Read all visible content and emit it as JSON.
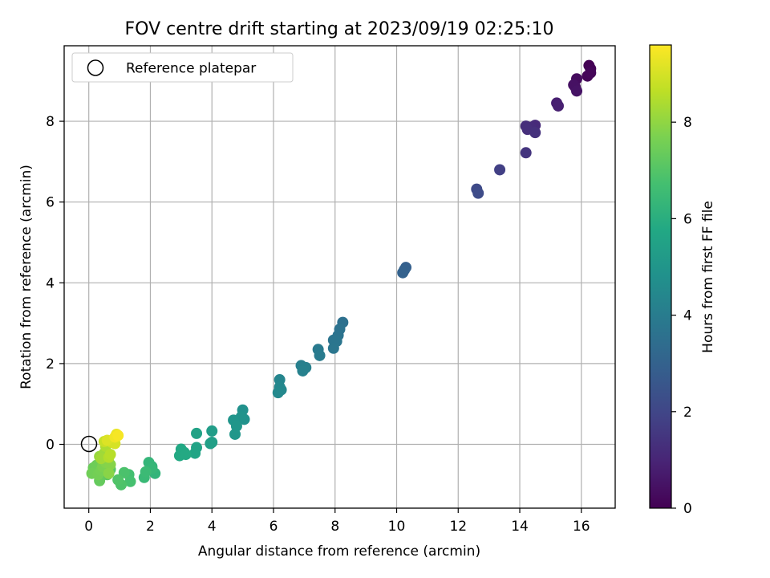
{
  "chart_data": {
    "type": "scatter",
    "title": "FOV centre drift starting at 2023/09/19 02:25:10",
    "xlabel": "Angular distance from reference (arcmin)",
    "ylabel": "Rotation from reference (arcmin)",
    "xlim": [
      -0.8,
      17.1
    ],
    "ylim": [
      -1.58,
      9.87
    ],
    "xticks": [
      0,
      2,
      4,
      6,
      8,
      10,
      12,
      14,
      16
    ],
    "yticks": [
      0,
      2,
      4,
      6,
      8
    ],
    "grid": true,
    "legend": {
      "placement": "upper-left",
      "entries": [
        "Reference platepar"
      ]
    },
    "reference_point": {
      "x": 0,
      "y": 0,
      "label": "Reference platepar"
    },
    "colorbar": {
      "label": "Hours from first FF file",
      "colormap": "viridis",
      "range": [
        0,
        9.6
      ],
      "ticks": [
        0,
        2,
        4,
        6,
        8
      ]
    },
    "points": [
      [
        16.25,
        9.38,
        0.0
      ],
      [
        16.3,
        9.3,
        0.05
      ],
      [
        16.2,
        9.12,
        0.1
      ],
      [
        16.3,
        9.2,
        0.15
      ],
      [
        15.85,
        9.05,
        0.3
      ],
      [
        15.8,
        8.85,
        0.4
      ],
      [
        15.75,
        8.9,
        0.45
      ],
      [
        15.85,
        8.75,
        0.5
      ],
      [
        15.2,
        8.45,
        0.8
      ],
      [
        15.25,
        8.38,
        0.85
      ],
      [
        14.5,
        7.9,
        1.15
      ],
      [
        14.35,
        7.85,
        1.2
      ],
      [
        14.2,
        7.88,
        1.25
      ],
      [
        14.25,
        7.8,
        1.3
      ],
      [
        14.5,
        7.72,
        1.35
      ],
      [
        14.2,
        7.22,
        1.45
      ],
      [
        13.35,
        6.8,
        1.8
      ],
      [
        12.6,
        6.32,
        2.15
      ],
      [
        12.65,
        6.22,
        2.2
      ],
      [
        10.3,
        4.38,
        2.9
      ],
      [
        10.25,
        4.32,
        2.95
      ],
      [
        10.2,
        4.25,
        3.0
      ],
      [
        8.25,
        3.02,
        3.55
      ],
      [
        8.15,
        2.85,
        3.6
      ],
      [
        8.1,
        2.7,
        3.65
      ],
      [
        7.95,
        2.58,
        3.7
      ],
      [
        8.05,
        2.55,
        3.72
      ],
      [
        7.95,
        2.38,
        3.78
      ],
      [
        7.45,
        2.35,
        3.9
      ],
      [
        7.5,
        2.2,
        3.95
      ],
      [
        6.9,
        1.95,
        4.1
      ],
      [
        7.05,
        1.9,
        4.15
      ],
      [
        6.95,
        1.82,
        4.2
      ],
      [
        6.2,
        1.6,
        4.35
      ],
      [
        6.2,
        1.42,
        4.4
      ],
      [
        6.25,
        1.35,
        4.45
      ],
      [
        6.15,
        1.28,
        4.5
      ],
      [
        5.0,
        0.85,
        4.8
      ],
      [
        5.05,
        0.62,
        4.85
      ],
      [
        4.95,
        0.68,
        4.88
      ],
      [
        4.7,
        0.6,
        4.95
      ],
      [
        4.8,
        0.45,
        5.0
      ],
      [
        4.75,
        0.25,
        5.05
      ],
      [
        4.0,
        0.33,
        5.3
      ],
      [
        4.0,
        0.05,
        5.35
      ],
      [
        3.95,
        0.02,
        5.38
      ],
      [
        3.5,
        0.27,
        5.5
      ],
      [
        3.5,
        -0.08,
        5.55
      ],
      [
        3.45,
        -0.22,
        5.6
      ],
      [
        3.1,
        -0.2,
        5.7
      ],
      [
        3.0,
        -0.12,
        5.75
      ],
      [
        2.95,
        -0.28,
        5.8
      ],
      [
        3.15,
        -0.25,
        5.82
      ],
      [
        2.05,
        -0.55,
        6.2
      ],
      [
        2.15,
        -0.72,
        6.25
      ],
      [
        1.95,
        -0.45,
        6.3
      ],
      [
        2.05,
        -0.6,
        6.35
      ],
      [
        1.8,
        -0.82,
        6.45
      ],
      [
        1.85,
        -0.68,
        6.5
      ],
      [
        1.3,
        -0.75,
        6.7
      ],
      [
        1.35,
        -0.92,
        6.75
      ],
      [
        1.15,
        -0.7,
        6.85
      ],
      [
        1.05,
        -1.0,
        6.9
      ],
      [
        0.95,
        -0.88,
        6.95
      ],
      [
        0.7,
        -0.62,
        7.1
      ],
      [
        0.6,
        -0.75,
        7.15
      ],
      [
        0.35,
        -0.9,
        7.3
      ],
      [
        0.15,
        -0.58,
        7.4
      ],
      [
        0.25,
        -0.52,
        7.45
      ],
      [
        0.1,
        -0.72,
        7.5
      ],
      [
        0.3,
        -0.75,
        7.55
      ],
      [
        0.4,
        -0.65,
        7.6
      ],
      [
        0.45,
        -0.55,
        7.7
      ],
      [
        0.55,
        -0.45,
        7.8
      ],
      [
        0.7,
        -0.5,
        7.85
      ],
      [
        0.65,
        -0.72,
        7.9
      ],
      [
        0.35,
        -0.3,
        8.1
      ],
      [
        0.5,
        -0.22,
        8.2
      ],
      [
        0.4,
        -0.35,
        8.25
      ],
      [
        0.55,
        -0.05,
        8.4
      ],
      [
        0.65,
        -0.32,
        8.5
      ],
      [
        0.7,
        -0.25,
        8.55
      ],
      [
        0.5,
        0.07,
        8.8
      ],
      [
        0.75,
        0.05,
        8.9
      ],
      [
        0.85,
        0.02,
        9.0
      ],
      [
        0.6,
        0.1,
        9.1
      ],
      [
        0.9,
        0.25,
        9.3
      ],
      [
        0.85,
        0.18,
        9.4
      ],
      [
        0.95,
        0.22,
        9.5
      ]
    ]
  }
}
